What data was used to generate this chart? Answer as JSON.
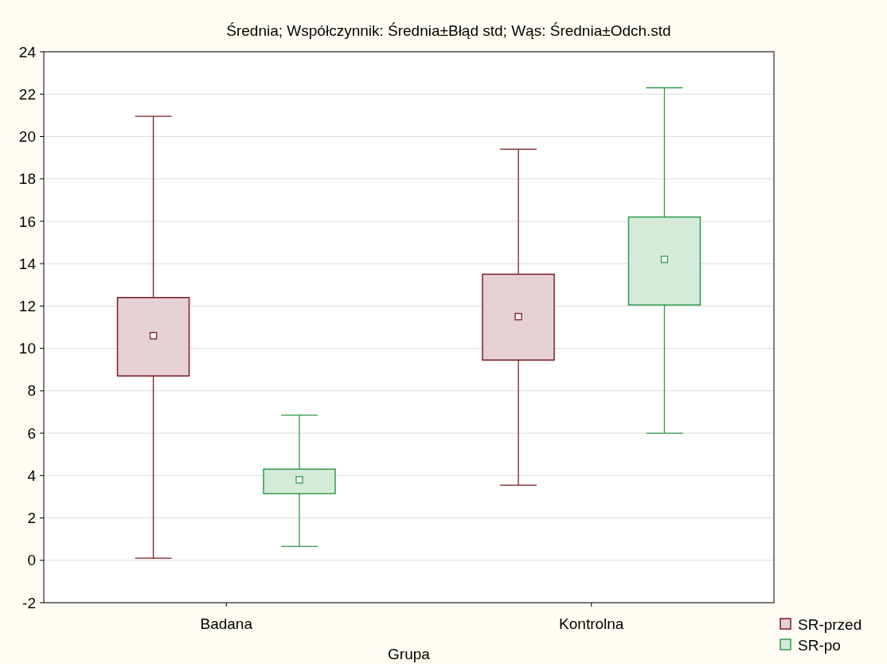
{
  "chart_data": {
    "type": "box",
    "title": "Średnia; Współczynnik: Średnia±Błąd std; Wąs: Średnia±Odch.std",
    "xlabel": "Grupa",
    "categories": [
      "Badana",
      "Kontrolna"
    ],
    "series": [
      {
        "name": "SR-przed",
        "color": "#7b1a22",
        "boxes": [
          {
            "low": 0.1,
            "q1": 8.7,
            "median": 10.6,
            "q3": 12.4,
            "high": 20.95
          },
          {
            "low": 3.55,
            "q1": 9.45,
            "median": 11.5,
            "q3": 13.5,
            "high": 19.4
          }
        ]
      },
      {
        "name": "SR-po",
        "color": "#2e9a48",
        "boxes": [
          {
            "low": 0.65,
            "q1": 3.15,
            "median": 3.8,
            "q3": 4.3,
            "high": 6.85
          },
          {
            "low": 6.0,
            "q1": 12.05,
            "median": 14.2,
            "q3": 16.2,
            "high": 22.3
          }
        ]
      }
    ],
    "ylim": [
      -2,
      24
    ],
    "yticks": [
      -2,
      0,
      2,
      4,
      6,
      8,
      10,
      12,
      14,
      16,
      18,
      20,
      22,
      24
    ],
    "grid": "y",
    "legend": "bottom right",
    "marker": "square"
  }
}
